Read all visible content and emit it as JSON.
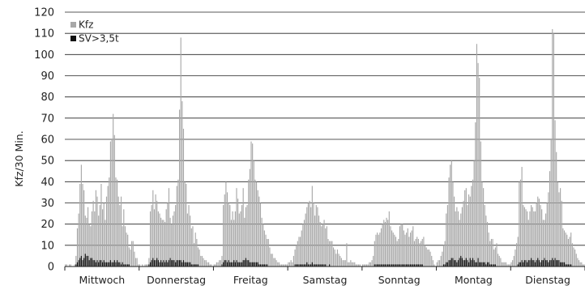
{
  "chart_data": {
    "type": "bar",
    "ylabel": "Kfz/30 Min.",
    "xlabel": "",
    "ylim": [
      0,
      120
    ],
    "yticks": [
      "0",
      "10",
      "20",
      "30",
      "40",
      "50",
      "60",
      "70",
      "80",
      "90",
      "100",
      "110",
      "120"
    ],
    "grid": true,
    "legend": [
      {
        "name": "Kfz",
        "color": "#a8a8a8"
      },
      {
        "name": "SV>3,5t",
        "color": "#111111"
      }
    ],
    "categories": [
      "Mittwoch",
      "Donnerstag",
      "Freitag",
      "Samstag",
      "Sonntag",
      "Montag",
      "Dienstag"
    ],
    "series": [
      {
        "name": "Kfz",
        "color": "#a8a8a8",
        "values": [
          [
            1,
            1,
            0,
            1,
            1,
            0,
            0,
            1,
            5,
            18,
            25,
            39,
            48,
            39,
            36,
            24,
            23,
            28,
            20,
            19,
            26,
            31,
            26,
            36,
            33,
            24,
            29,
            39,
            27,
            30,
            22,
            33,
            38,
            42,
            59,
            60,
            72,
            62,
            42,
            41,
            33,
            29,
            33,
            19,
            27,
            19,
            16,
            15,
            9,
            8,
            12,
            12,
            7,
            4,
            4,
            1
          ],
          [
            1,
            0,
            1,
            0,
            1,
            1,
            1,
            4,
            26,
            29,
            36,
            27,
            34,
            31,
            26,
            25,
            23,
            22,
            22,
            21,
            27,
            30,
            37,
            23,
            20,
            24,
            26,
            29,
            38,
            41,
            74,
            108,
            78,
            65,
            40,
            39,
            25,
            29,
            24,
            18,
            19,
            11,
            16,
            13,
            9,
            8,
            5,
            5,
            4,
            3,
            3,
            2,
            2,
            1,
            1,
            0
          ],
          [
            1,
            1,
            2,
            2,
            3,
            3,
            5,
            29,
            34,
            40,
            35,
            30,
            29,
            22,
            26,
            22,
            26,
            37,
            32,
            25,
            26,
            29,
            37,
            23,
            28,
            29,
            41,
            46,
            59,
            58,
            50,
            41,
            40,
            36,
            33,
            30,
            23,
            20,
            17,
            15,
            13,
            13,
            9,
            6,
            6,
            4,
            4,
            3,
            2,
            2,
            1,
            1,
            1,
            1,
            1,
            1
          ],
          [
            2,
            2,
            3,
            2,
            5,
            8,
            10,
            12,
            14,
            14,
            17,
            20,
            22,
            25,
            28,
            30,
            31,
            28,
            38,
            30,
            24,
            29,
            28,
            24,
            21,
            19,
            20,
            22,
            18,
            19,
            13,
            12,
            12,
            12,
            9,
            8,
            6,
            8,
            6,
            5,
            4,
            3,
            3,
            3,
            11,
            2,
            2,
            3,
            2,
            2,
            2,
            1,
            1,
            1,
            1,
            0
          ],
          [
            1,
            1,
            1,
            1,
            1,
            2,
            2,
            3,
            5,
            12,
            15,
            16,
            15,
            16,
            18,
            20,
            22,
            21,
            23,
            22,
            26,
            19,
            17,
            16,
            15,
            14,
            12,
            13,
            19,
            20,
            20,
            17,
            15,
            16,
            18,
            14,
            16,
            17,
            19,
            12,
            13,
            14,
            13,
            11,
            12,
            13,
            14,
            10,
            9,
            8,
            8,
            7,
            5,
            3,
            1,
            0
          ],
          [
            2,
            3,
            3,
            5,
            7,
            10,
            12,
            25,
            29,
            42,
            48,
            50,
            40,
            33,
            26,
            28,
            26,
            22,
            25,
            28,
            31,
            36,
            37,
            29,
            34,
            33,
            38,
            41,
            50,
            68,
            105,
            96,
            89,
            59,
            40,
            37,
            29,
            24,
            21,
            16,
            12,
            13,
            13,
            8,
            9,
            11,
            6,
            5,
            4,
            2,
            2,
            2,
            2,
            1,
            1,
            1
          ],
          [
            2,
            3,
            5,
            8,
            11,
            14,
            40,
            41,
            47,
            29,
            28,
            27,
            26,
            22,
            26,
            29,
            28,
            26,
            26,
            30,
            33,
            32,
            29,
            27,
            22,
            22,
            25,
            30,
            35,
            45,
            60,
            112,
            110,
            69,
            54,
            40,
            35,
            37,
            31,
            18,
            17,
            16,
            15,
            13,
            14,
            16,
            11,
            9,
            8,
            6,
            4,
            3,
            2,
            2,
            1,
            1
          ]
        ]
      },
      {
        "name": "SV>3,5t",
        "color": "#111111",
        "values": [
          [
            0,
            0,
            0,
            0,
            0,
            0,
            0,
            0,
            1,
            2,
            3,
            4,
            5,
            3,
            4,
            6,
            5,
            5,
            3,
            4,
            4,
            3,
            3,
            2,
            3,
            2,
            3,
            3,
            2,
            3,
            2,
            2,
            2,
            2,
            3,
            2,
            2,
            3,
            2,
            3,
            2,
            2,
            1,
            2,
            1,
            1,
            1,
            1,
            1,
            0,
            0,
            0,
            0,
            0,
            0,
            0
          ],
          [
            0,
            0,
            0,
            0,
            0,
            0,
            0,
            1,
            2,
            3,
            4,
            3,
            3,
            4,
            3,
            2,
            3,
            2,
            3,
            2,
            3,
            2,
            3,
            4,
            3,
            3,
            3,
            2,
            3,
            3,
            3,
            3,
            2,
            3,
            2,
            2,
            2,
            2,
            2,
            1,
            1,
            1,
            1,
            1,
            1,
            0,
            0,
            0,
            0,
            0,
            0,
            0,
            0,
            0,
            0,
            0
          ],
          [
            0,
            0,
            0,
            0,
            0,
            0,
            1,
            2,
            3,
            3,
            2,
            3,
            2,
            2,
            2,
            3,
            2,
            3,
            2,
            2,
            2,
            2,
            3,
            3,
            4,
            3,
            3,
            2,
            2,
            2,
            2,
            2,
            2,
            2,
            1,
            1,
            1,
            1,
            1,
            1,
            1,
            0,
            0,
            0,
            0,
            0,
            0,
            0,
            0,
            0,
            0,
            0,
            0,
            0,
            0,
            0
          ],
          [
            0,
            0,
            0,
            0,
            0,
            1,
            1,
            1,
            1,
            1,
            1,
            1,
            1,
            1,
            2,
            1,
            1,
            1,
            2,
            1,
            1,
            1,
            1,
            1,
            1,
            1,
            1,
            1,
            1,
            0,
            0,
            1,
            0,
            0,
            0,
            0,
            0,
            0,
            0,
            0,
            0,
            0,
            0,
            0,
            0,
            0,
            0,
            0,
            0,
            0,
            0,
            0,
            0,
            0,
            0,
            0
          ],
          [
            0,
            0,
            0,
            0,
            0,
            0,
            0,
            0,
            0,
            1,
            1,
            1,
            1,
            1,
            1,
            1,
            1,
            1,
            1,
            1,
            1,
            1,
            1,
            1,
            1,
            1,
            1,
            1,
            1,
            1,
            1,
            1,
            1,
            1,
            1,
            1,
            1,
            1,
            1,
            1,
            1,
            1,
            1,
            1,
            1,
            1,
            0,
            0,
            0,
            0,
            0,
            0,
            0,
            0,
            0,
            0
          ],
          [
            0,
            0,
            0,
            0,
            0,
            1,
            1,
            2,
            2,
            3,
            3,
            4,
            4,
            3,
            3,
            2,
            3,
            4,
            5,
            4,
            3,
            3,
            4,
            3,
            2,
            4,
            3,
            4,
            3,
            2,
            2,
            4,
            2,
            2,
            2,
            2,
            2,
            1,
            2,
            2,
            1,
            1,
            1,
            1,
            1,
            0,
            0,
            0,
            0,
            0,
            0,
            0,
            0,
            0,
            0,
            0
          ],
          [
            0,
            0,
            0,
            0,
            0,
            1,
            2,
            2,
            3,
            2,
            3,
            3,
            2,
            3,
            3,
            4,
            3,
            3,
            2,
            3,
            4,
            3,
            2,
            3,
            3,
            4,
            3,
            3,
            2,
            3,
            3,
            4,
            3,
            4,
            3,
            3,
            3,
            2,
            2,
            2,
            2,
            1,
            1,
            1,
            1,
            1,
            0,
            0,
            0,
            0,
            0,
            0,
            0,
            0,
            0,
            0
          ]
        ]
      }
    ]
  }
}
